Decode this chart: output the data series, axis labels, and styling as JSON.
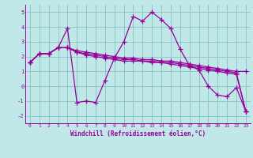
{
  "background_color": "#c0e8e8",
  "grid_color": "#90c8c8",
  "line_color": "#990099",
  "marker": "+",
  "markersize": 4,
  "linewidth": 0.9,
  "markeredgewidth": 0.9,
  "xlim": [
    -0.5,
    23.5
  ],
  "ylim": [
    -2.5,
    5.5
  ],
  "xlabel": "Windchill (Refroidissement éolien,°C)",
  "xlabel_fontsize": 5.5,
  "xtick_fontsize": 4.5,
  "ytick_fontsize": 5.0,
  "yticks": [
    -2,
    -1,
    0,
    1,
    2,
    3,
    4,
    5
  ],
  "xticks": [
    0,
    1,
    2,
    3,
    4,
    5,
    6,
    7,
    8,
    9,
    10,
    11,
    12,
    13,
    14,
    15,
    16,
    17,
    18,
    19,
    20,
    21,
    22,
    23
  ],
  "series": [
    [
      1.6,
      2.2,
      2.2,
      2.6,
      3.9,
      -1.1,
      -1.0,
      -1.1,
      0.4,
      1.9,
      3.0,
      4.7,
      4.4,
      5.0,
      4.5,
      3.9,
      2.5,
      1.4,
      1.1,
      0.0,
      -0.6,
      -0.7,
      -0.1,
      -1.7
    ],
    [
      1.6,
      2.2,
      2.2,
      2.6,
      2.6,
      2.4,
      2.3,
      2.2,
      2.1,
      2.0,
      1.9,
      1.9,
      1.8,
      1.8,
      1.7,
      1.7,
      1.6,
      1.5,
      1.4,
      1.3,
      1.2,
      1.1,
      1.0,
      1.0
    ],
    [
      1.6,
      2.2,
      2.2,
      2.6,
      2.6,
      2.3,
      2.2,
      2.1,
      2.0,
      1.9,
      1.8,
      1.8,
      1.7,
      1.7,
      1.6,
      1.6,
      1.5,
      1.4,
      1.3,
      1.2,
      1.1,
      1.0,
      0.9,
      -1.7
    ],
    [
      1.6,
      2.2,
      2.2,
      2.6,
      2.6,
      2.3,
      2.1,
      2.0,
      1.9,
      1.8,
      1.7,
      1.7,
      1.7,
      1.6,
      1.6,
      1.5,
      1.4,
      1.3,
      1.2,
      1.1,
      1.0,
      0.9,
      0.8,
      -1.7
    ]
  ]
}
